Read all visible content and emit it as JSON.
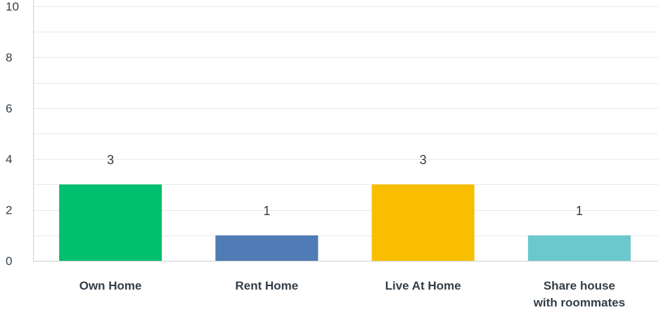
{
  "chart_data": {
    "type": "bar",
    "categories": [
      "Own Home",
      "Rent Home",
      "Live At Home",
      "Share house with roommates"
    ],
    "category_label_lines": [
      [
        "Own Home"
      ],
      [
        "Rent Home"
      ],
      [
        "Live At Home"
      ],
      [
        "Share house",
        "with roommates"
      ]
    ],
    "values": [
      3,
      1,
      3,
      1
    ],
    "data_labels": [
      "3",
      "1",
      "3",
      "1"
    ],
    "colors": [
      "#00bf6f",
      "#507cb6",
      "#f9be00",
      "#6bc8cd"
    ],
    "ylim": [
      0,
      10
    ],
    "y_ticks": [
      0,
      2,
      4,
      6,
      8,
      10
    ],
    "y_tick_labels": [
      "0",
      "2",
      "4",
      "6",
      "8",
      "10"
    ],
    "minor_gridlines": [
      1,
      3,
      5,
      7,
      9
    ],
    "title": "",
    "xlabel": "",
    "ylabel": "",
    "grid": true,
    "legend": "none",
    "gridline_color": "#e8e8e8",
    "axis_color": "#d0d0d0"
  }
}
